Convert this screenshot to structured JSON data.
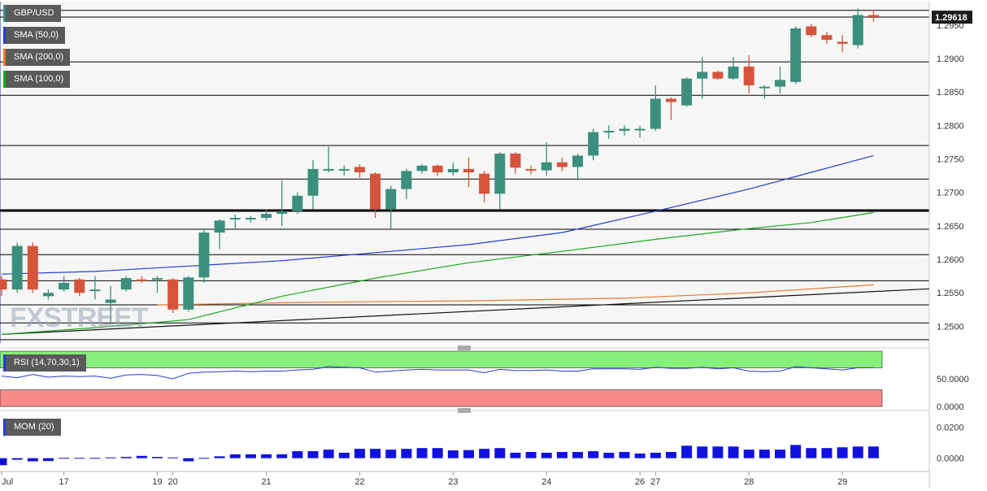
{
  "chart_data": [
    {
      "type": "candlestick",
      "title": "GBP/USD",
      "last_price": "1.29618",
      "ylim": [
        1.2475,
        1.2985
      ],
      "y_ticks": [
        "1.2950",
        "1.2900",
        "1.2850",
        "1.2800",
        "1.2750",
        "1.2700",
        "1.2650",
        "1.2600",
        "1.2550",
        "1.2500"
      ],
      "x_ticks": [
        {
          "label": "Jul",
          "i": 0
        },
        {
          "label": "17",
          "i": 4
        },
        {
          "label": "19",
          "i": 10
        },
        {
          "label": "20",
          "i": 11
        },
        {
          "label": "21",
          "i": 17
        },
        {
          "label": "22",
          "i": 23
        },
        {
          "label": "23",
          "i": 29
        },
        {
          "label": "24",
          "i": 35
        },
        {
          "label": "26",
          "i": 41
        },
        {
          "label": "27",
          "i": 42
        },
        {
          "label": "28",
          "i": 48
        },
        {
          "label": "29",
          "i": 54
        }
      ],
      "candles": [
        [
          1.257,
          1.2575,
          1.2545,
          1.2555
        ],
        [
          1.2555,
          1.2625,
          1.255,
          1.262
        ],
        [
          1.262,
          1.2625,
          1.255,
          1.2555
        ],
        [
          1.2545,
          1.2555,
          1.254,
          1.255
        ],
        [
          1.2555,
          1.2575,
          1.2552,
          1.2565
        ],
        [
          1.257,
          1.2572,
          1.2545,
          1.255
        ],
        [
          1.2555,
          1.2575,
          1.254,
          1.2555
        ],
        [
          1.2535,
          1.256,
          1.2505,
          1.254
        ],
        [
          1.2555,
          1.2575,
          1.2552,
          1.2572
        ],
        [
          1.257,
          1.2575,
          1.2565,
          1.2568
        ],
        [
          1.257,
          1.2575,
          1.255,
          1.2572
        ],
        [
          1.257,
          1.2572,
          1.252,
          1.2525
        ],
        [
          1.2525,
          1.2575,
          1.2522,
          1.2573
        ],
        [
          1.2573,
          1.2645,
          1.2565,
          1.264
        ],
        [
          1.264,
          1.266,
          1.2615,
          1.2658
        ],
        [
          1.266,
          1.2667,
          1.2645,
          1.2662
        ],
        [
          1.266,
          1.2665,
          1.2655,
          1.2662
        ],
        [
          1.2662,
          1.2675,
          1.2658,
          1.2668
        ],
        [
          1.2668,
          1.2718,
          1.265,
          1.2672
        ],
        [
          1.2672,
          1.27,
          1.2668,
          1.2695
        ],
        [
          1.2695,
          1.2748,
          1.2675,
          1.2735
        ],
        [
          1.2735,
          1.2768,
          1.273,
          1.2735
        ],
        [
          1.2735,
          1.274,
          1.2725,
          1.2735
        ],
        [
          1.2738,
          1.2742,
          1.2722,
          1.273
        ],
        [
          1.2728,
          1.273,
          1.2662,
          1.2675
        ],
        [
          1.2675,
          1.271,
          1.2645,
          1.2705
        ],
        [
          1.2705,
          1.2735,
          1.269,
          1.2732
        ],
        [
          1.2732,
          1.2742,
          1.2728,
          1.274
        ],
        [
          1.274,
          1.2742,
          1.2725,
          1.273
        ],
        [
          1.273,
          1.2745,
          1.2725,
          1.2735
        ],
        [
          1.2735,
          1.2752,
          1.2708,
          1.273
        ],
        [
          1.2728,
          1.2732,
          1.2685,
          1.2698
        ],
        [
          1.2698,
          1.276,
          1.2675,
          1.2758
        ],
        [
          1.2758,
          1.276,
          1.2728,
          1.2737
        ],
        [
          1.2735,
          1.274,
          1.2727,
          1.2733
        ],
        [
          1.2733,
          1.2775,
          1.2725,
          1.2745
        ],
        [
          1.2745,
          1.2752,
          1.2732,
          1.2738
        ],
        [
          1.2738,
          1.2758,
          1.2718,
          1.2755
        ],
        [
          1.2755,
          1.2795,
          1.2748,
          1.279
        ],
        [
          1.279,
          1.28,
          1.278,
          1.2792
        ],
        [
          1.2792,
          1.28,
          1.2785,
          1.2795
        ],
        [
          1.2795,
          1.28,
          1.2782,
          1.2795
        ],
        [
          1.2795,
          1.286,
          1.2792,
          1.284
        ],
        [
          1.284,
          1.2842,
          1.2808,
          1.2835
        ],
        [
          1.283,
          1.2872,
          1.2828,
          1.287
        ],
        [
          1.287,
          1.2902,
          1.284,
          1.288
        ],
        [
          1.288,
          1.2882,
          1.2868,
          1.287
        ],
        [
          1.287,
          1.2902,
          1.2868,
          1.2888
        ],
        [
          1.2888,
          1.2905,
          1.2848,
          1.286
        ],
        [
          1.2858,
          1.286,
          1.284,
          1.2858
        ],
        [
          1.2858,
          1.2888,
          1.2848,
          1.2868
        ],
        [
          1.2865,
          1.2948,
          1.2862,
          1.2945
        ],
        [
          1.2948,
          1.2952,
          1.2932,
          1.2935
        ],
        [
          1.2935,
          1.294,
          1.2922,
          1.2928
        ],
        [
          1.2925,
          1.2935,
          1.291,
          1.2922
        ],
        [
          1.292,
          1.2975,
          1.2915,
          1.2965
        ],
        [
          1.2965,
          1.2972,
          1.2955,
          1.2962
        ]
      ],
      "horizontal_levels": [
        1.2972,
        1.2962,
        1.2895,
        1.2845,
        1.277,
        1.272,
        1.2645,
        1.2607,
        1.2568,
        1.2532,
        1.2505,
        1.248
      ],
      "bold_level": 1.2673,
      "trendline": [
        [
          0,
          1.2488
        ],
        [
          60,
          1.2556
        ]
      ],
      "series": [
        {
          "name": "SMA (50,0)",
          "color": "#1f3fd1",
          "values": [
            [
              0,
              1.2578
            ],
            [
              6,
              1.2582
            ],
            [
              12,
              1.259
            ],
            [
              18,
              1.2598
            ],
            [
              24,
              1.261
            ],
            [
              30,
              1.2622
            ],
            [
              36,
              1.264
            ],
            [
              42,
              1.2672
            ],
            [
              48,
              1.2705
            ],
            [
              52,
              1.273
            ],
            [
              56,
              1.2755
            ]
          ]
        },
        {
          "name": "SMA (200,0)",
          "color": "#e8762b",
          "values": [
            [
              10,
              1.2532
            ],
            [
              20,
              1.2536
            ],
            [
              30,
              1.2538
            ],
            [
              40,
              1.2542
            ],
            [
              48,
              1.255
            ],
            [
              56,
              1.2562
            ]
          ]
        },
        {
          "name": "SMA (100,0)",
          "color": "#1aaa1a",
          "values": [
            [
              0,
              1.2488
            ],
            [
              6,
              1.2498
            ],
            [
              12,
              1.251
            ],
            [
              18,
              1.2545
            ],
            [
              24,
              1.2572
            ],
            [
              30,
              1.2595
            ],
            [
              36,
              1.2612
            ],
            [
              42,
              1.263
            ],
            [
              48,
              1.2646
            ],
            [
              52,
              1.2655
            ],
            [
              56,
              1.267
            ]
          ]
        }
      ]
    },
    {
      "type": "line",
      "name": "RSI (14,70,30,1)",
      "y_ticks": [
        "50.0000",
        "0.0000"
      ],
      "ylim": [
        0,
        100
      ],
      "overbought": 70,
      "oversold": 30,
      "values": [
        55,
        52,
        58,
        53,
        55,
        54,
        55,
        51,
        57,
        58,
        56,
        50,
        60,
        62,
        63,
        64,
        63,
        64,
        64,
        66,
        67,
        72,
        71,
        70,
        62,
        64,
        66,
        67,
        66,
        66,
        66,
        61,
        67,
        65,
        65,
        66,
        64,
        64,
        68,
        68,
        68,
        67,
        71,
        69,
        69,
        71,
        68,
        70,
        64,
        63,
        64,
        72,
        70,
        68,
        66,
        70,
        70
      ]
    },
    {
      "type": "bar",
      "name": "MOM (20)",
      "y_ticks": [
        "0.0200",
        "0.0000"
      ],
      "ylim": [
        -0.0075,
        0.028
      ],
      "values": [
        -0.0045,
        -0.001,
        -0.002,
        -0.0018,
        0.0002,
        0.0002,
        0.0002,
        0.0005,
        0.0008,
        0.0015,
        0.0008,
        0.0005,
        -0.002,
        0.0002,
        0.0012,
        0.0025,
        0.0025,
        0.0025,
        0.0025,
        0.0045,
        0.0045,
        0.0055,
        0.0035,
        0.006,
        0.006,
        0.0055,
        0.006,
        0.0065,
        0.0065,
        0.005,
        0.0052,
        0.006,
        0.0065,
        0.0035,
        0.004,
        0.0035,
        0.004,
        0.004,
        0.0045,
        0.0035,
        0.004,
        0.003,
        0.0035,
        0.004,
        0.008,
        0.0075,
        0.0075,
        0.0075,
        0.0055,
        0.0055,
        0.0055,
        0.0085,
        0.0065,
        0.0065,
        0.007,
        0.0075,
        0.0075
      ]
    }
  ],
  "watermark": "FXSTREET",
  "colors": {
    "up": "#3c8f7c",
    "down": "#d6533c",
    "rsi_over": "#86f07a",
    "rsi_under": "#f98a8a",
    "mom": "#1111dd",
    "grid": "#000000"
  }
}
